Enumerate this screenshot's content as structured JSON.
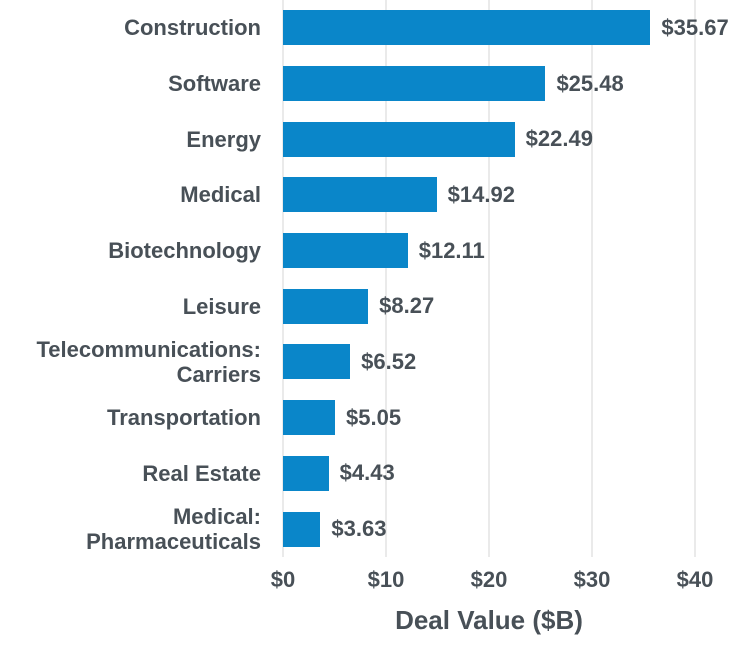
{
  "chart_data": {
    "type": "bar",
    "orientation": "horizontal",
    "title": "",
    "xlabel": "Deal Value ($B)",
    "ylabel": "",
    "categories": [
      "Construction",
      "Software",
      "Energy",
      "Medical",
      "Biotechnology",
      "Leisure",
      "Telecommunications:\nCarriers",
      "Transportation",
      "Real Estate",
      "Medical:\nPharmaceuticals"
    ],
    "values": [
      35.67,
      25.48,
      22.49,
      14.92,
      12.11,
      8.27,
      6.52,
      5.05,
      4.43,
      3.63
    ],
    "value_labels": [
      "$35.67",
      "$25.48",
      "$22.49",
      "$14.92",
      "$12.11",
      "$8.27",
      "$6.52",
      "$5.05",
      "$4.43",
      "$3.63"
    ],
    "xlim": [
      0,
      40
    ],
    "x_ticks": [
      0,
      10,
      20,
      30,
      40
    ],
    "x_tick_labels": [
      "$0",
      "$10",
      "$20",
      "$30",
      "$40"
    ],
    "grid": true,
    "legend": false
  },
  "colors": {
    "bar": "#0a86c9",
    "text": "#485057",
    "gridline": "#d6d6d6"
  }
}
